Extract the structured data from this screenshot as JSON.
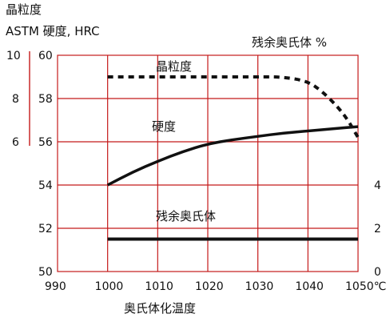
{
  "header": {
    "grain_label": "晶粒度",
    "left_axis_label": "ASTM  硬度, HRC",
    "right_axis_label": "残余奥氏体 %"
  },
  "chart_data": {
    "type": "line",
    "xlabel": "奥氏体化温度",
    "x_ticks": [
      "990",
      "1000",
      "1010",
      "1020",
      "1030",
      "1040",
      "1050℃"
    ],
    "x_tick_values": [
      990,
      1000,
      1010,
      1020,
      1030,
      1040,
      1050
    ],
    "xlim": [
      990,
      1050
    ],
    "hrc_axis": {
      "ticks": [
        50,
        52,
        54,
        56,
        58,
        60
      ],
      "ylim": [
        50,
        60
      ]
    },
    "astm_axis": {
      "ticks": [
        6,
        8,
        10
      ]
    },
    "retained_axis": {
      "ticks": [
        0,
        2,
        4
      ]
    },
    "grid": true,
    "colors": {
      "grid": "#c41a1a",
      "series": "#111111"
    },
    "series": [
      {
        "name": "晶粒度",
        "style": "dashed",
        "x": [
          1000,
          1010,
          1020,
          1030,
          1035,
          1040,
          1043,
          1046,
          1048,
          1050
        ],
        "y": [
          59.0,
          59.0,
          59.0,
          59.0,
          59.0,
          58.8,
          58.3,
          57.6,
          57.0,
          56.2
        ]
      },
      {
        "name": "硬度",
        "style": "solid",
        "x": [
          1000,
          1005,
          1010,
          1015,
          1020,
          1025,
          1030,
          1035,
          1040,
          1045,
          1050
        ],
        "y": [
          54.0,
          54.6,
          55.1,
          55.55,
          55.9,
          56.1,
          56.25,
          56.4,
          56.5,
          56.6,
          56.7
        ]
      },
      {
        "name": "残余奥氏体",
        "style": "solid",
        "x": [
          1000,
          1050
        ],
        "y": [
          51.5,
          51.5
        ]
      }
    ]
  }
}
